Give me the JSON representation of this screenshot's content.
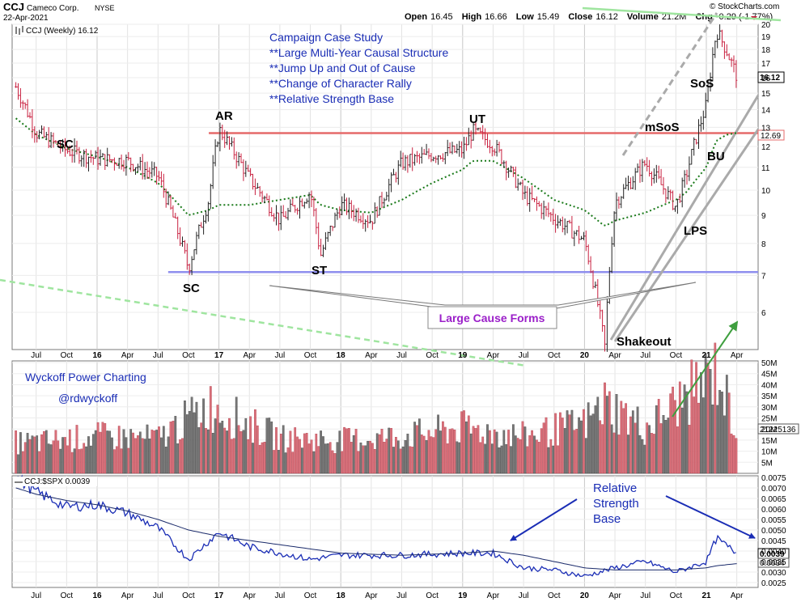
{
  "header": {
    "ticker": "CCJ",
    "company": "Cameco Corp.",
    "exchange": "NYSE",
    "date": "22-Apr-2021",
    "brand": "© StockCharts.com",
    "open_label": "Open",
    "open": "16.45",
    "high_label": "High",
    "high": "16.66",
    "low_label": "Low",
    "low": "15.49",
    "close_label": "Close",
    "close": "16.12",
    "volume_label": "Volume",
    "volume": "21.2M",
    "chg_label": "Chg",
    "chg": "-0.29 (-1.77%)"
  },
  "price_panel": {
    "legend": "CCJ (Weekly) 16.12",
    "last_price": "16.12",
    "resistance_price": "12.69",
    "y_ticks": [
      "20",
      "19",
      "18",
      "17",
      "16",
      "15",
      "14",
      "13",
      "12",
      "11",
      "10",
      "9",
      "8",
      "7",
      "6"
    ]
  },
  "annotations": {
    "case_study": [
      "Campaign Case Study",
      "**Large Multi-Year Causal Structure",
      "**Jump Up and Out of Cause",
      "**Change of Character Rally",
      "**Relative Strength Base"
    ],
    "phases": {
      "sc_early": "SC",
      "ar": "AR",
      "sc": "SC",
      "st": "ST",
      "ut": "UT",
      "shakeout": "Shakeout",
      "msos": "mSoS",
      "sos": "SoS",
      "bu": "BU",
      "lps": "LPS"
    },
    "large_cause": "Large Cause Forms",
    "power_charting": "Wyckoff Power Charting",
    "handle": "@rdwyckoff",
    "rs_base": [
      "Relative",
      "Strength",
      "Base"
    ]
  },
  "volume_panel": {
    "last_volume": "21225136",
    "y_ticks": [
      "50M",
      "45M",
      "40M",
      "35M",
      "30M",
      "25M",
      "20M",
      "15M",
      "10M",
      "5M"
    ]
  },
  "rs_panel": {
    "legend": "CCJ:$SPX 0.0039",
    "last_value": "0.0039",
    "ma_value": "0.0034",
    "y_ticks": [
      "0.0075",
      "0.0070",
      "0.0065",
      "0.0060",
      "0.0055",
      "0.0050",
      "0.0045",
      "0.0040",
      "0.0035",
      "0.0030",
      "0.0025"
    ]
  },
  "x_axis": {
    "labels": [
      "Jul",
      "Oct",
      "16",
      "Apr",
      "Jul",
      "Oct",
      "17",
      "Apr",
      "Jul",
      "Oct",
      "18",
      "Apr",
      "Jul",
      "Oct",
      "19",
      "Apr",
      "Jul",
      "Oct",
      "20",
      "Apr",
      "Jul",
      "Oct",
      "21",
      "Apr"
    ],
    "year_labels": [
      "16",
      "17",
      "18",
      "19",
      "20",
      "21"
    ]
  },
  "colors": {
    "up": "#222222",
    "down": "#c8203f",
    "ma": "#1a7a1a",
    "resistance": "#e56a6a",
    "support": "#8f8fee",
    "annotation": "#1a2db5",
    "cause": "#9b1fc9",
    "trend": "#aaaaaa",
    "green_arrow": "#3f9f3f"
  },
  "chart_data": [
    {
      "type": "line",
      "title": "CCJ (Weekly) 16.12",
      "x": [
        "2015-05",
        "2015-07",
        "2015-10",
        "2016-01",
        "2016-04",
        "2016-07",
        "2016-10",
        "2016-12",
        "2017-01",
        "2017-04",
        "2017-07",
        "2017-10",
        "2017-11",
        "2018-01",
        "2018-04",
        "2018-07",
        "2018-10",
        "2019-01",
        "2019-02",
        "2019-04",
        "2019-07",
        "2019-10",
        "2020-01",
        "2020-03",
        "2020-04",
        "2020-07",
        "2020-10",
        "2020-11",
        "2021-01",
        "2021-02",
        "2021-03",
        "2021-04"
      ],
      "series": [
        {
          "name": "CCJ",
          "values": [
            15.4,
            12.7,
            11.8,
            11.4,
            11.3,
            10.6,
            7.2,
            9.6,
            12.9,
            10.5,
            8.8,
            9.9,
            7.6,
            9.4,
            8.8,
            11.2,
            11.6,
            11.8,
            12.8,
            12.1,
            9.8,
            8.9,
            8.1,
            5.2,
            9.5,
            11.2,
            9.3,
            10.6,
            14.3,
            19.5,
            17.9,
            16.1
          ]
        },
        {
          "name": "Moving average",
          "values": [
            13.5,
            12.6,
            11.9,
            11.5,
            11.0,
            10.3,
            9.0,
            9.2,
            9.4,
            9.4,
            9.6,
            9.8,
            9.4,
            9.2,
            9.1,
            9.6,
            10.3,
            10.9,
            11.3,
            11.3,
            10.5,
            9.6,
            9.2,
            8.6,
            8.8,
            9.1,
            9.6,
            9.9,
            11.0,
            12.3,
            12.6,
            12.7
          ]
        }
      ],
      "levels": {
        "resistance": 12.69,
        "support": 7.1
      },
      "ylim": [
        5,
        20
      ],
      "scale": "log"
    },
    {
      "type": "bar",
      "title": "Volume",
      "x": [
        "2015-07",
        "2016-01",
        "2016-07",
        "2016-12",
        "2017-07",
        "2018-01",
        "2018-07",
        "2019-01",
        "2019-07",
        "2020-01",
        "2020-03",
        "2020-07",
        "2021-01",
        "2021-02",
        "2021-04"
      ],
      "values": [
        15,
        18,
        17,
        33,
        17,
        16,
        18,
        22,
        18,
        24,
        34,
        22,
        45,
        50,
        21.2
      ],
      "ylim": [
        0,
        50
      ],
      "ylabel": ""
    },
    {
      "type": "line",
      "title": "CCJ:$SPX 0.0039",
      "x": [
        "2015-05",
        "2015-07",
        "2015-10",
        "2016-01",
        "2016-04",
        "2016-07",
        "2016-10",
        "2017-01",
        "2017-04",
        "2017-07",
        "2017-10",
        "2018-01",
        "2018-07",
        "2019-01",
        "2019-04",
        "2019-07",
        "2019-10",
        "2020-01",
        "2020-04",
        "2020-07",
        "2020-10",
        "2021-01",
        "2021-02",
        "2021-04"
      ],
      "series": [
        {
          "name": "CCJ:$SPX",
          "values": [
            0.0075,
            0.0068,
            0.0061,
            0.0062,
            0.0058,
            0.0051,
            0.0036,
            0.0049,
            0.0042,
            0.0039,
            0.0036,
            0.0038,
            0.0038,
            0.0039,
            0.0039,
            0.0032,
            0.0031,
            0.0028,
            0.0032,
            0.0035,
            0.003,
            0.0035,
            0.0046,
            0.0039
          ]
        },
        {
          "name": "Moving average",
          "values": [
            0.007,
            0.0067,
            0.0064,
            0.0062,
            0.0059,
            0.0055,
            0.005,
            0.0047,
            0.0045,
            0.0043,
            0.0041,
            0.0039,
            0.0038,
            0.0039,
            0.004,
            0.0038,
            0.0035,
            0.0032,
            0.0031,
            0.0031,
            0.0031,
            0.0032,
            0.0033,
            0.0034
          ]
        }
      ],
      "ylim": [
        0.0025,
        0.0075
      ]
    }
  ]
}
